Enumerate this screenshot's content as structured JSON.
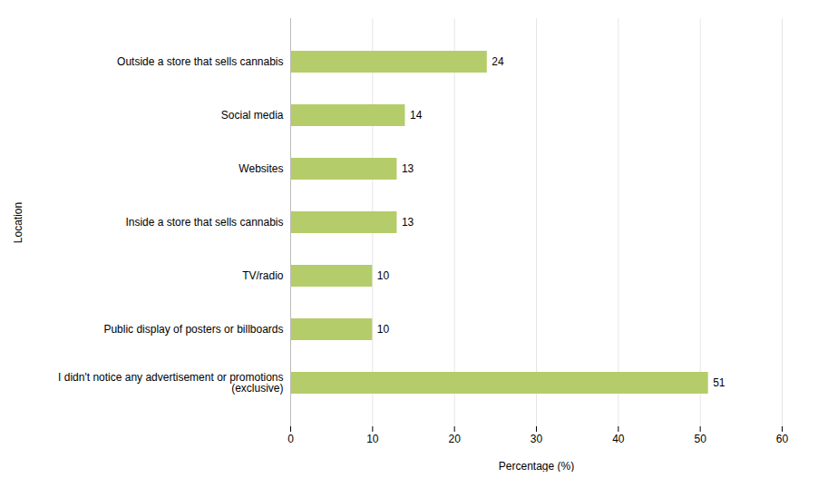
{
  "chart_data": {
    "type": "bar",
    "orientation": "horizontal",
    "categories": [
      "I didn't notice any advertisement or promotions\n(exclusive)",
      "Public display of posters or billboards",
      "TV/radio",
      "Inside a store that sells cannabis",
      "Websites",
      "Social media",
      "Outside a store that sells cannabis"
    ],
    "values": [
      51,
      10,
      10,
      13,
      13,
      14,
      24
    ],
    "color": "#b5cc6a",
    "xlabel": "Percentage (%)",
    "ylabel": "Location",
    "xlim": [
      0,
      60
    ],
    "xticks": [
      0,
      10,
      20,
      30,
      40,
      50,
      60
    ],
    "grid": true,
    "data_labels": true
  }
}
